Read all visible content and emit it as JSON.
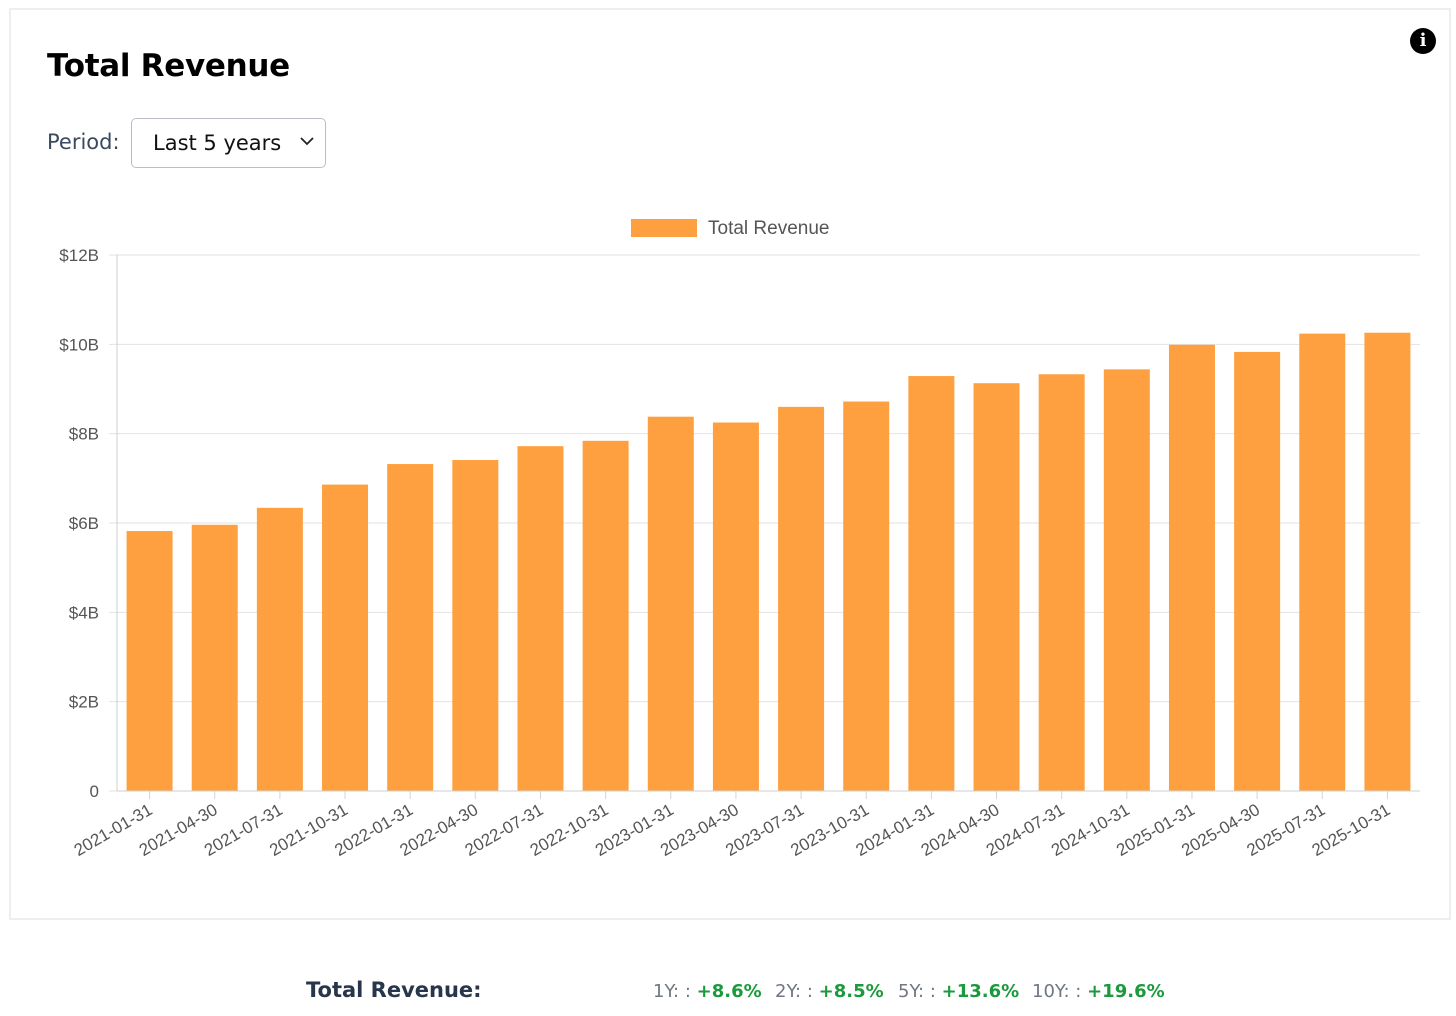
{
  "header": {
    "title": "Total Revenue",
    "info_icon": "info-icon"
  },
  "period": {
    "label": "Period:",
    "selected": "Last 5 years",
    "icon": "chevron-down-icon"
  },
  "colors": {
    "bar": "#ffa040",
    "grid": "#e2e2e2",
    "axis_text": "#555555",
    "growth_positive": "#1a9a3c"
  },
  "chart_data": {
    "type": "bar",
    "title": "",
    "xlabel": "",
    "ylabel": "",
    "legend": {
      "position": "top-center"
    },
    "grid": true,
    "ylim": [
      0,
      12000000000
    ],
    "yticks": [
      "0",
      "$2B",
      "$4B",
      "$6B",
      "$8B",
      "$10B",
      "$12B"
    ],
    "categories": [
      "2021-01-31",
      "2021-04-30",
      "2021-07-31",
      "2021-10-31",
      "2022-01-31",
      "2022-04-30",
      "2022-07-31",
      "2022-10-31",
      "2023-01-31",
      "2023-04-30",
      "2023-07-31",
      "2023-10-31",
      "2024-01-31",
      "2024-04-30",
      "2024-07-31",
      "2024-10-31",
      "2025-01-31",
      "2025-04-30",
      "2025-07-31",
      "2025-10-31"
    ],
    "series": [
      {
        "name": "Total Revenue",
        "values": [
          5820000000,
          5960000000,
          6340000000,
          6860000000,
          7320000000,
          7410000000,
          7720000000,
          7840000000,
          8380000000,
          8250000000,
          8600000000,
          8720000000,
          9290000000,
          9130000000,
          9330000000,
          9440000000,
          9990000000,
          9830000000,
          10240000000,
          10260000000
        ]
      }
    ]
  },
  "summary": {
    "label": "Total Revenue:",
    "growth": [
      {
        "key": "1Y: :",
        "value": "+8.6%"
      },
      {
        "key": "2Y: :",
        "value": "+8.5%"
      },
      {
        "key": "5Y: :",
        "value": "+13.6%"
      },
      {
        "key": "10Y: :",
        "value": "+19.6%"
      }
    ]
  }
}
